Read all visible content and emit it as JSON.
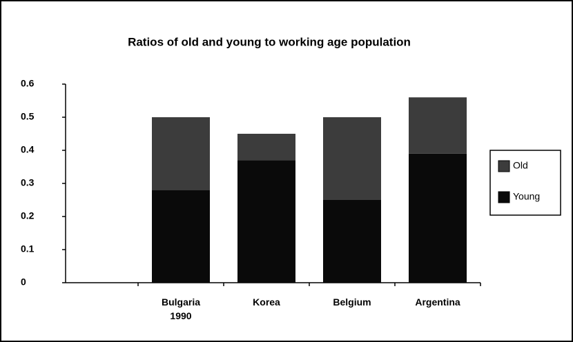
{
  "chart_data": {
    "type": "stacked_bar",
    "title": "Ratios of old and young to working age population",
    "categories": [
      null,
      "Bulgaria 1990",
      "Korea",
      "Belgium",
      "Argentina"
    ],
    "series": [
      {
        "name": "Old",
        "color": "#3c3c3c",
        "values": [
          null,
          0.22,
          0.08,
          0.25,
          0.17
        ]
      },
      {
        "name": "Young",
        "color": "#0a0a0a",
        "values": [
          null,
          0.28,
          0.37,
          0.25,
          0.39
        ]
      }
    ],
    "ylim": [
      0,
      0.6
    ],
    "yticks": [
      0,
      0.1,
      0.2,
      0.3,
      0.4,
      0.5,
      0.6
    ],
    "legend": "right"
  }
}
